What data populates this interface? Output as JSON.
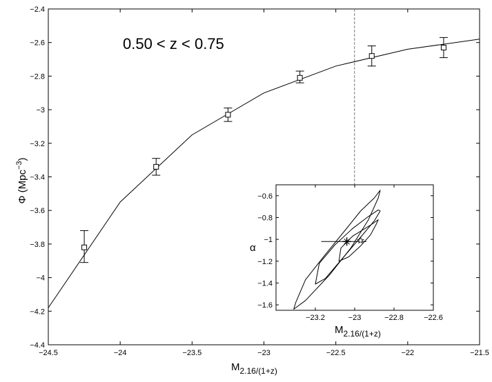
{
  "chart_data": [
    {
      "type": "line",
      "xlabel": "M",
      "xlabel_sub": "2.16/(1+z)",
      "ylabel": "Φ (Mpc",
      "ylabel_sup": "−3",
      "ylabel_close": ")",
      "annotation": "0.50 < z < 0.75",
      "xlim": [
        -24.5,
        -21.5
      ],
      "ylim": [
        -4.4,
        -2.4
      ],
      "xticks": [
        -24.5,
        -24,
        -23.5,
        -23,
        -22.5,
        -22,
        -21.5
      ],
      "xtick_labels": [
        "−24.5",
        "−24",
        "−23.5",
        "−23",
        "−22.5",
        "−22",
        "−21.5"
      ],
      "yticks": [
        -4.4,
        -4.2,
        -4.0,
        -3.8,
        -3.6,
        -3.4,
        -3.2,
        -3.0,
        -2.8,
        -2.6,
        -2.4
      ],
      "ytick_labels": [
        "−4.4",
        "−4.2",
        "−4",
        "−3.8",
        "−3.6",
        "−3.4",
        "−3.2",
        "−3",
        "−2.8",
        "−2.6",
        "−2.4"
      ],
      "grid": false,
      "model_curve": {
        "x": [
          -24.5,
          -24.0,
          -23.5,
          -23.0,
          -22.5,
          -22.0,
          -21.5
        ],
        "y": [
          -4.18,
          -3.55,
          -3.15,
          -2.9,
          -2.74,
          -2.64,
          -2.58
        ]
      },
      "data_points": {
        "x": [
          -24.25,
          -23.75,
          -23.25,
          -22.75,
          -22.25,
          -21.75
        ],
        "y": [
          -3.82,
          -3.34,
          -3.03,
          -2.81,
          -2.68,
          -2.63
        ],
        "err_lo": [
          0.09,
          0.05,
          0.04,
          0.03,
          0.06,
          0.06
        ],
        "err_hi": [
          0.1,
          0.05,
          0.04,
          0.04,
          0.06,
          0.06
        ]
      },
      "reference_line_x": -22.37
    },
    {
      "type": "contour",
      "xlabel": "M",
      "xlabel_sub": "2.16/(1+z)",
      "ylabel": "α",
      "xlim": [
        -23.4,
        -22.6
      ],
      "ylim": [
        -1.65,
        -0.5
      ],
      "xticks": [
        -23.2,
        -23.0,
        -22.8,
        -22.6
      ],
      "xtick_labels": [
        "−23.2",
        "−23",
        "−22.8",
        "−22.6"
      ],
      "yticks": [
        -0.6,
        -0.8,
        -1.0,
        -1.2,
        -1.4,
        -1.6
      ],
      "ytick_labels": [
        "−0.6",
        "−0.8",
        "−1",
        "−1.2",
        "−1.4",
        "−1.6"
      ],
      "contours": [
        {
          "x": [
            -23.3,
            -23.25,
            -23.15,
            -23.05,
            -22.97,
            -22.9,
            -22.87,
            -22.88,
            -22.93,
            -23.02,
            -23.13,
            -23.25,
            -23.31,
            -23.3
          ],
          "y": [
            -1.58,
            -1.37,
            -1.14,
            -0.92,
            -0.74,
            -0.62,
            -0.55,
            -0.62,
            -0.82,
            -1.08,
            -1.33,
            -1.56,
            -1.64,
            -1.58
          ]
        },
        {
          "x": [
            -23.2,
            -23.18,
            -23.1,
            -23.01,
            -22.93,
            -22.88,
            -22.87,
            -22.9,
            -22.97,
            -23.06,
            -23.15,
            -23.2
          ],
          "y": [
            -1.41,
            -1.22,
            -1.05,
            -0.9,
            -0.79,
            -0.73,
            -0.74,
            -0.83,
            -0.98,
            -1.17,
            -1.36,
            -1.41
          ]
        },
        {
          "x": [
            -23.08,
            -23.07,
            -23.01,
            -22.92,
            -22.88,
            -22.89,
            -22.92,
            -22.97,
            -23.03,
            -23.08
          ],
          "y": [
            -1.2,
            -1.08,
            -0.97,
            -0.87,
            -0.82,
            -0.86,
            -0.96,
            -1.06,
            -1.16,
            -1.2
          ]
        }
      ],
      "best_fit": {
        "x": -23.04,
        "y": -1.02,
        "err_x": [
          -23.17,
          -22.94
        ]
      },
      "alt_fit": {
        "x": -22.97,
        "y": -1.01
      }
    }
  ]
}
